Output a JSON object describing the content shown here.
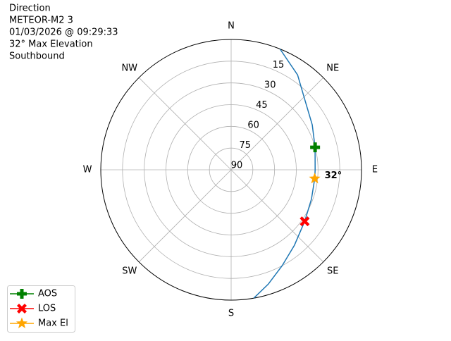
{
  "chart_data": {
    "type": "polar",
    "title_lines": [
      "Direction",
      "METEOR-M2 3",
      "01/03/2026 @ 09:29:33",
      "32° Max Elevation",
      "Southbound"
    ],
    "theta_ticks": [
      {
        "value": 0,
        "label": "N"
      },
      {
        "value": 45,
        "label": "NE"
      },
      {
        "value": 90,
        "label": "E"
      },
      {
        "value": 135,
        "label": "SE"
      },
      {
        "value": 180,
        "label": "S"
      },
      {
        "value": 225,
        "label": "SW"
      },
      {
        "value": 270,
        "label": "W"
      },
      {
        "value": 315,
        "label": "NW"
      }
    ],
    "rlim": [
      90,
      0
    ],
    "rticks": [
      15,
      30,
      45,
      60,
      75,
      90
    ],
    "grid": true,
    "legend": "lower left",
    "annotation": {
      "text": "32°",
      "azimuth": 96,
      "elevation": 32
    },
    "series": [
      {
        "color": "#1f77b4",
        "marker": "none",
        "azimuth": [
          22,
          35,
          46,
          61,
          75,
          90,
          96,
          110,
          125,
          140,
          152,
          162,
          170
        ],
        "elevation": [
          0,
          10,
          19.5,
          26,
          30,
          32,
          32,
          31,
          28,
          22,
          15,
          7,
          0
        ]
      },
      {
        "name": "AOS",
        "color": "#008000",
        "marker": "plus",
        "azimuth": [
          75
        ],
        "elevation": [
          30
        ]
      },
      {
        "name": "LOS",
        "color": "#ff0000",
        "marker": "x",
        "azimuth": [
          125
        ],
        "elevation": [
          28
        ]
      },
      {
        "name": "Max El",
        "color": "#ffa500",
        "marker": "star",
        "azimuth": [
          96
        ],
        "elevation": [
          32
        ]
      }
    ]
  }
}
